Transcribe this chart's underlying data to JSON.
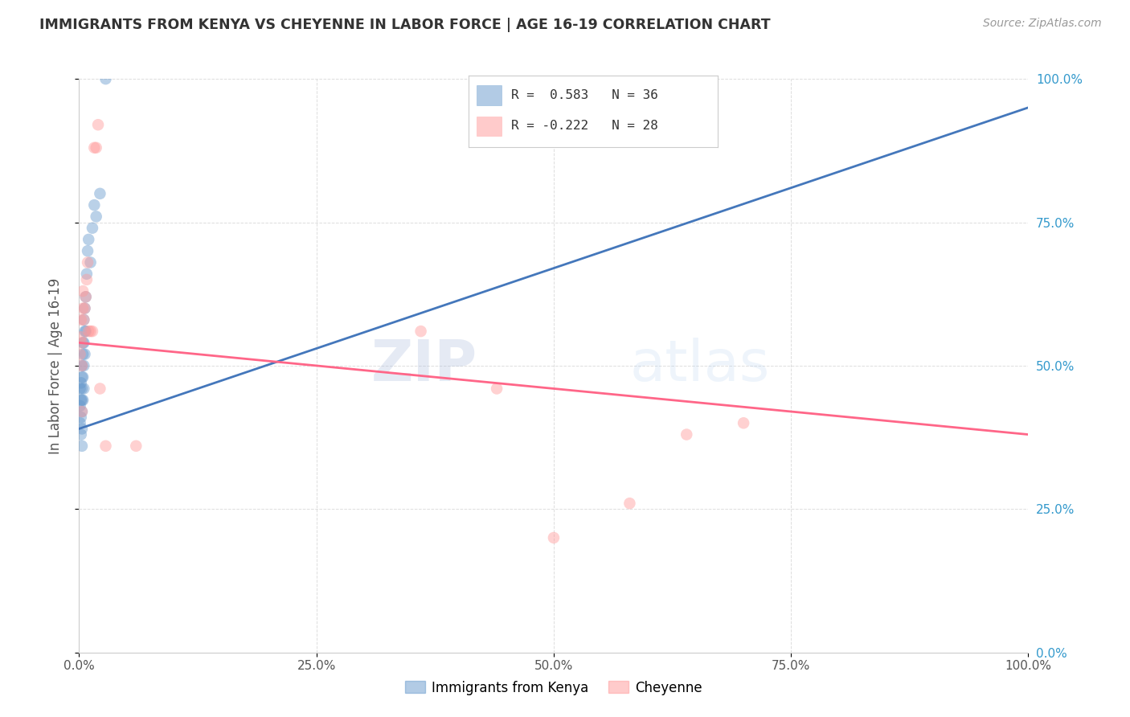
{
  "title": "IMMIGRANTS FROM KENYA VS CHEYENNE IN LABOR FORCE | AGE 16-19 CORRELATION CHART",
  "source": "Source: ZipAtlas.com",
  "ylabel": "In Labor Force | Age 16-19",
  "xlim": [
    0.0,
    1.0
  ],
  "ylim": [
    0.0,
    1.0
  ],
  "xticks": [
    0.0,
    0.25,
    0.5,
    0.75,
    1.0
  ],
  "yticks": [
    0.0,
    0.25,
    0.5,
    0.75,
    1.0
  ],
  "xtick_labels": [
    "0.0%",
    "25.0%",
    "50.0%",
    "75.0%",
    "100.0%"
  ],
  "ytick_labels_right": [
    "0.0%",
    "25.0%",
    "50.0%",
    "75.0%",
    "100.0%"
  ],
  "kenya_color": "#6699CC",
  "cheyenne_color": "#FF9999",
  "kenya_R": 0.583,
  "kenya_N": 36,
  "cheyenne_R": -0.222,
  "cheyenne_N": 28,
  "legend_labels": [
    "Immigrants from Kenya",
    "Cheyenne"
  ],
  "watermark_zip": "ZIP",
  "watermark_atlas": "atlas",
  "kenya_x": [
    0.001,
    0.001,
    0.001,
    0.002,
    0.002,
    0.002,
    0.002,
    0.003,
    0.003,
    0.003,
    0.003,
    0.003,
    0.003,
    0.003,
    0.004,
    0.004,
    0.004,
    0.004,
    0.005,
    0.005,
    0.005,
    0.005,
    0.006,
    0.006,
    0.006,
    0.007,
    0.007,
    0.008,
    0.009,
    0.01,
    0.012,
    0.014,
    0.016,
    0.018,
    0.022,
    0.028
  ],
  "kenya_y": [
    0.4,
    0.43,
    0.46,
    0.38,
    0.41,
    0.44,
    0.47,
    0.36,
    0.39,
    0.42,
    0.44,
    0.46,
    0.48,
    0.5,
    0.44,
    0.48,
    0.52,
    0.54,
    0.46,
    0.5,
    0.54,
    0.58,
    0.52,
    0.56,
    0.6,
    0.56,
    0.62,
    0.66,
    0.7,
    0.72,
    0.68,
    0.74,
    0.78,
    0.76,
    0.8,
    1.0
  ],
  "cheyenne_x": [
    0.001,
    0.002,
    0.002,
    0.003,
    0.003,
    0.003,
    0.004,
    0.004,
    0.005,
    0.006,
    0.007,
    0.008,
    0.009,
    0.01,
    0.012,
    0.014,
    0.016,
    0.018,
    0.02,
    0.022,
    0.028,
    0.06,
    0.36,
    0.44,
    0.5,
    0.58,
    0.64,
    0.7
  ],
  "cheyenne_y": [
    0.52,
    0.55,
    0.58,
    0.42,
    0.5,
    0.54,
    0.6,
    0.63,
    0.58,
    0.6,
    0.62,
    0.65,
    0.68,
    0.56,
    0.56,
    0.56,
    0.88,
    0.88,
    0.92,
    0.46,
    0.36,
    0.36,
    0.56,
    0.46,
    0.2,
    0.26,
    0.38,
    0.4
  ],
  "kenya_line_x": [
    0.0,
    1.0
  ],
  "kenya_line_y": [
    0.39,
    0.95
  ],
  "cheyenne_line_x": [
    0.0,
    1.0
  ],
  "cheyenne_line_y": [
    0.54,
    0.38
  ]
}
